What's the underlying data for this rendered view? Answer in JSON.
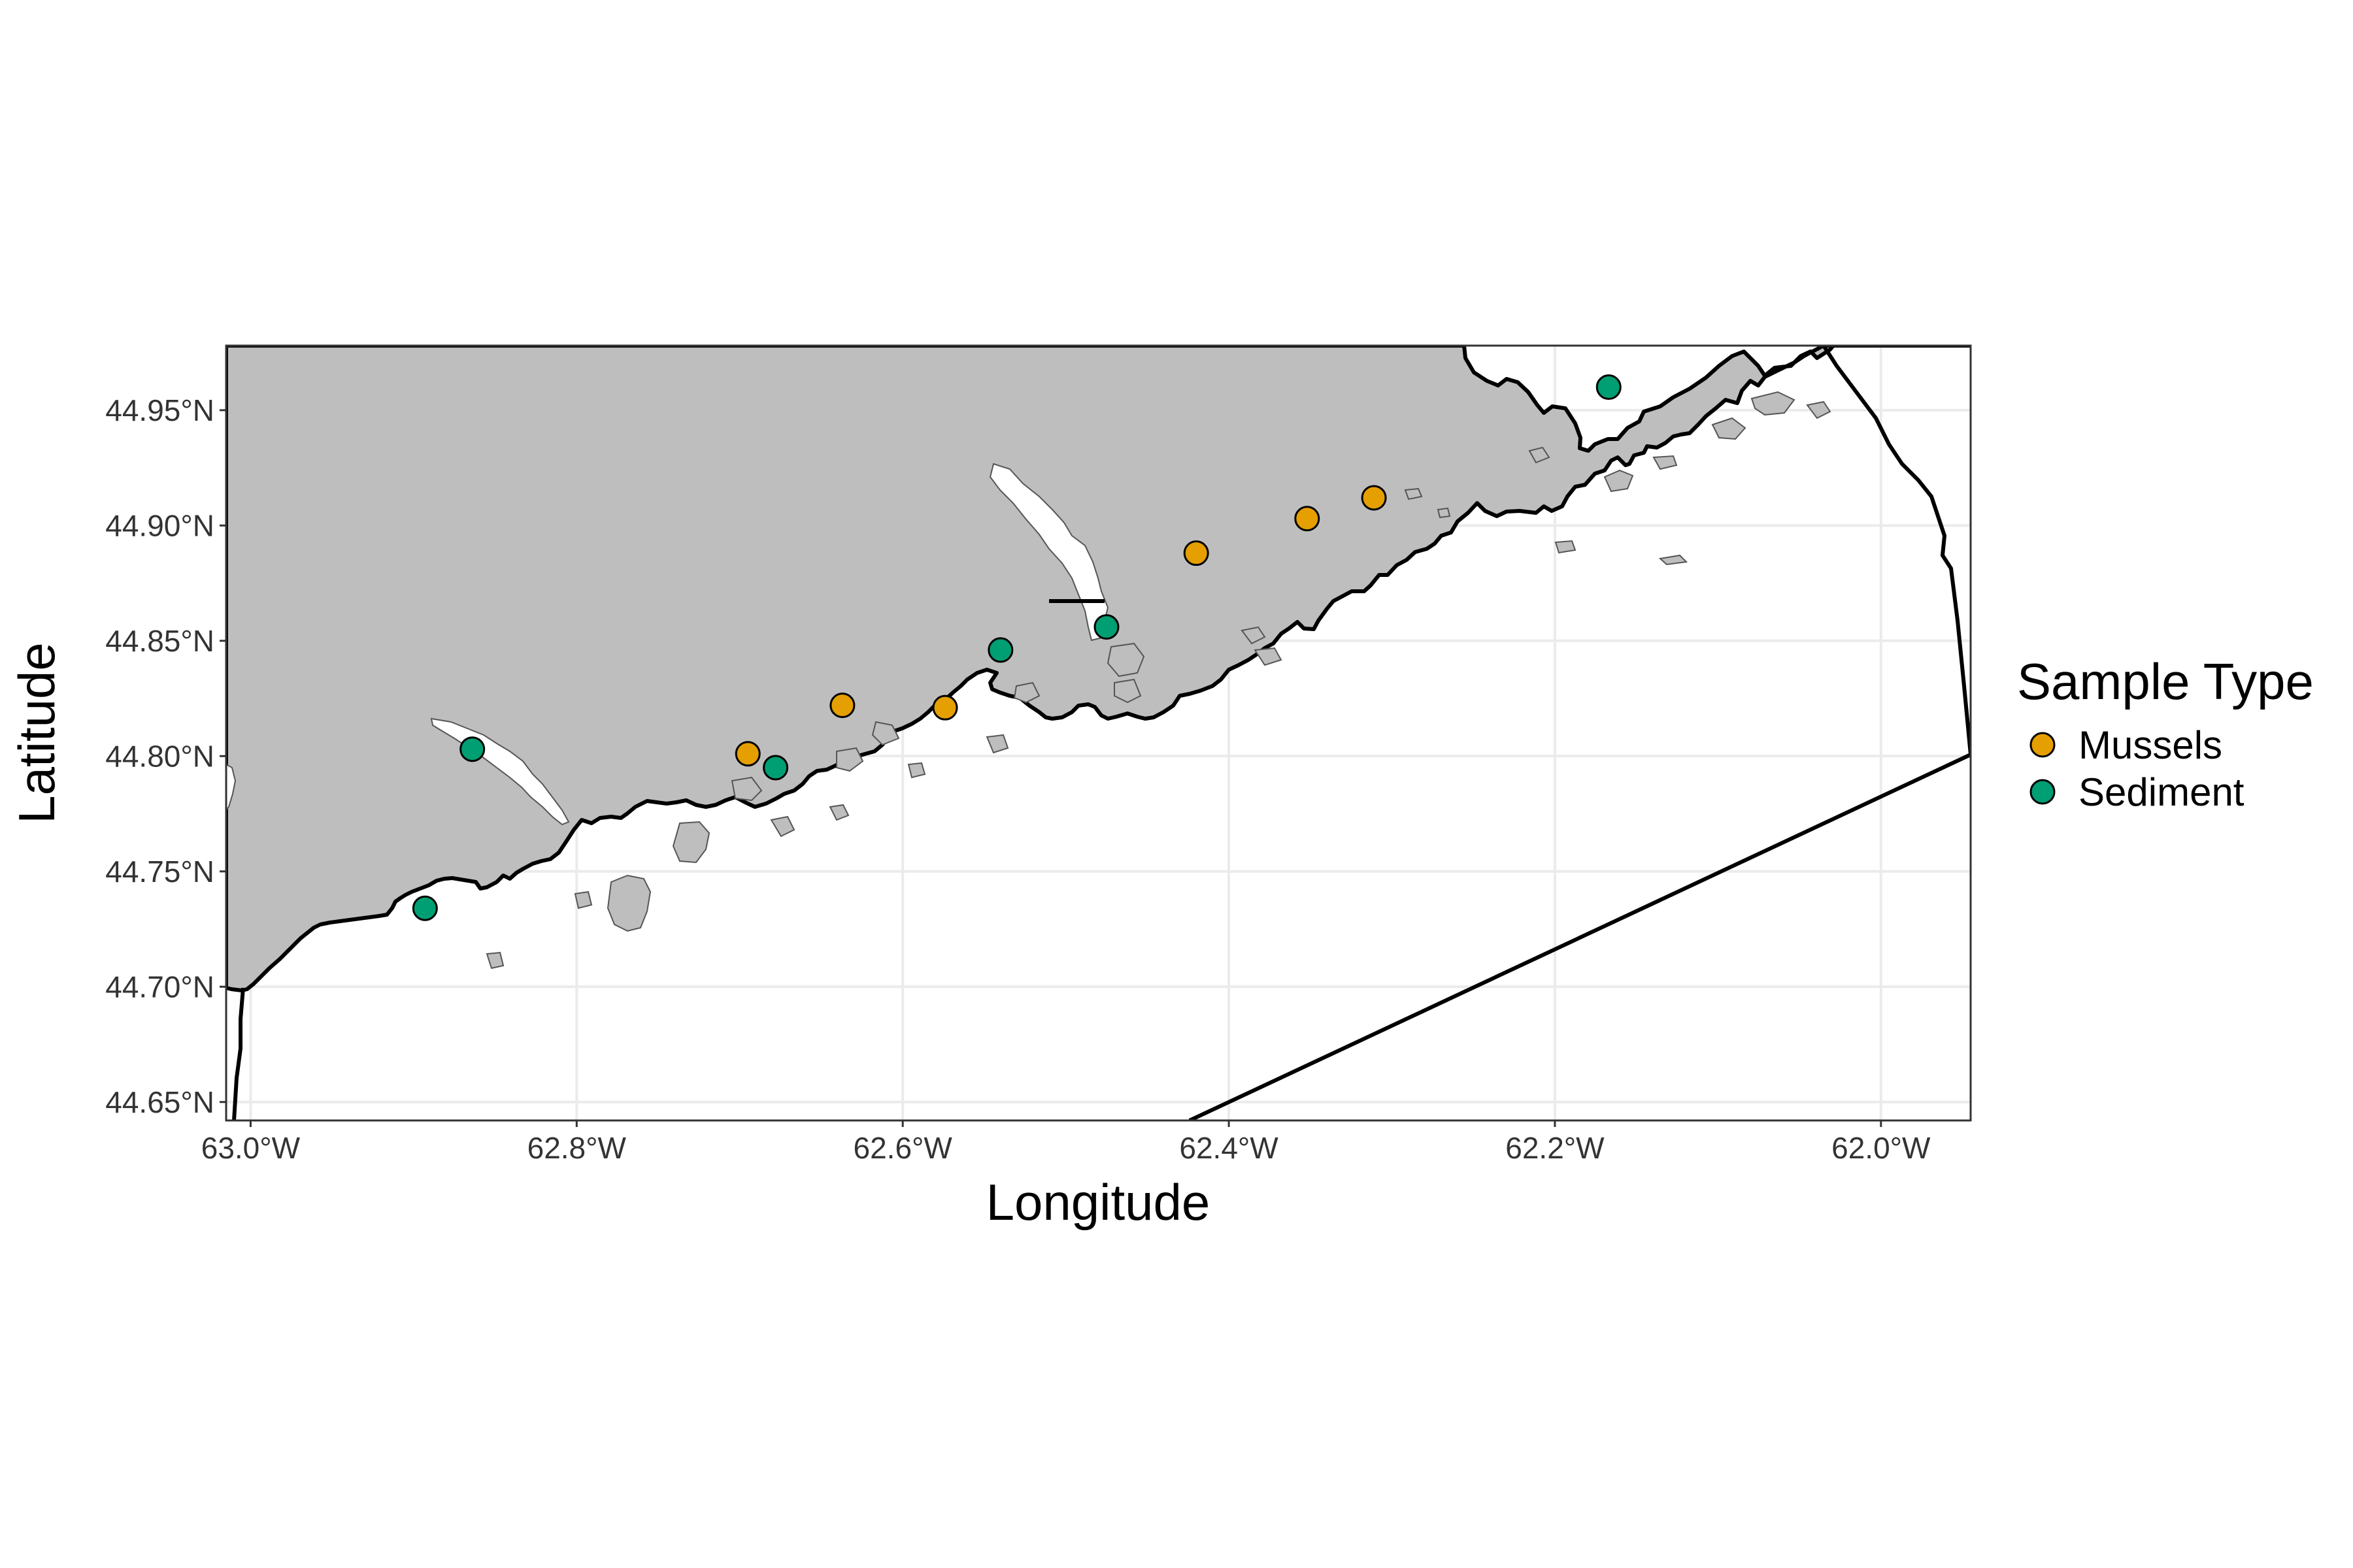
{
  "axes": {
    "xlabel": "Longitude",
    "ylabel": "Latitude",
    "xlim": [
      -63.015,
      -61.945
    ],
    "ylim": [
      44.642,
      44.978
    ],
    "xticks": [
      {
        "value": -63.0,
        "label": "63.0°W"
      },
      {
        "value": -62.8,
        "label": "62.8°W"
      },
      {
        "value": -62.6,
        "label": "62.6°W"
      },
      {
        "value": -62.4,
        "label": "62.4°W"
      },
      {
        "value": -62.2,
        "label": "62.2°W"
      },
      {
        "value": -62.0,
        "label": "62.0°W"
      }
    ],
    "yticks": [
      {
        "value": 44.65,
        "label": "44.65°N"
      },
      {
        "value": 44.7,
        "label": "44.70°N"
      },
      {
        "value": 44.75,
        "label": "44.75°N"
      },
      {
        "value": 44.8,
        "label": "44.80°N"
      },
      {
        "value": 44.85,
        "label": "44.85°N"
      },
      {
        "value": 44.9,
        "label": "44.90°N"
      },
      {
        "value": 44.95,
        "label": "44.95°N"
      }
    ]
  },
  "legend": {
    "title": "Sample Type",
    "placement": "right",
    "entries": [
      {
        "label": "Mussels",
        "color": "#E69F00"
      },
      {
        "label": "Sediment",
        "color": "#009E73"
      }
    ]
  },
  "colors": {
    "land": "#bebebe",
    "water": "#ffffff",
    "grid": "#ebebeb",
    "mussels": "#E69F00",
    "sediment": "#009E73"
  },
  "chart_data": {
    "type": "scatter",
    "xlabel": "Longitude",
    "ylabel": "Latitude",
    "xlim": [
      -63.015,
      -61.945
    ],
    "ylim": [
      44.642,
      44.978
    ],
    "grid": true,
    "series": [
      {
        "name": "Mussels",
        "color": "#E69F00",
        "points": [
          {
            "lon": -62.695,
            "lat": 44.801
          },
          {
            "lon": -62.637,
            "lat": 44.822
          },
          {
            "lon": -62.574,
            "lat": 44.821
          },
          {
            "lon": -62.42,
            "lat": 44.888
          },
          {
            "lon": -62.352,
            "lat": 44.903
          },
          {
            "lon": -62.311,
            "lat": 44.912
          }
        ]
      },
      {
        "name": "Sediment",
        "color": "#009E73",
        "points": [
          {
            "lon": -62.893,
            "lat": 44.734
          },
          {
            "lon": -62.864,
            "lat": 44.803
          },
          {
            "lon": -62.678,
            "lat": 44.795
          },
          {
            "lon": -62.54,
            "lat": 44.846
          },
          {
            "lon": -62.475,
            "lat": 44.856
          },
          {
            "lon": -62.167,
            "lat": 44.96
          }
        ]
      }
    ]
  }
}
